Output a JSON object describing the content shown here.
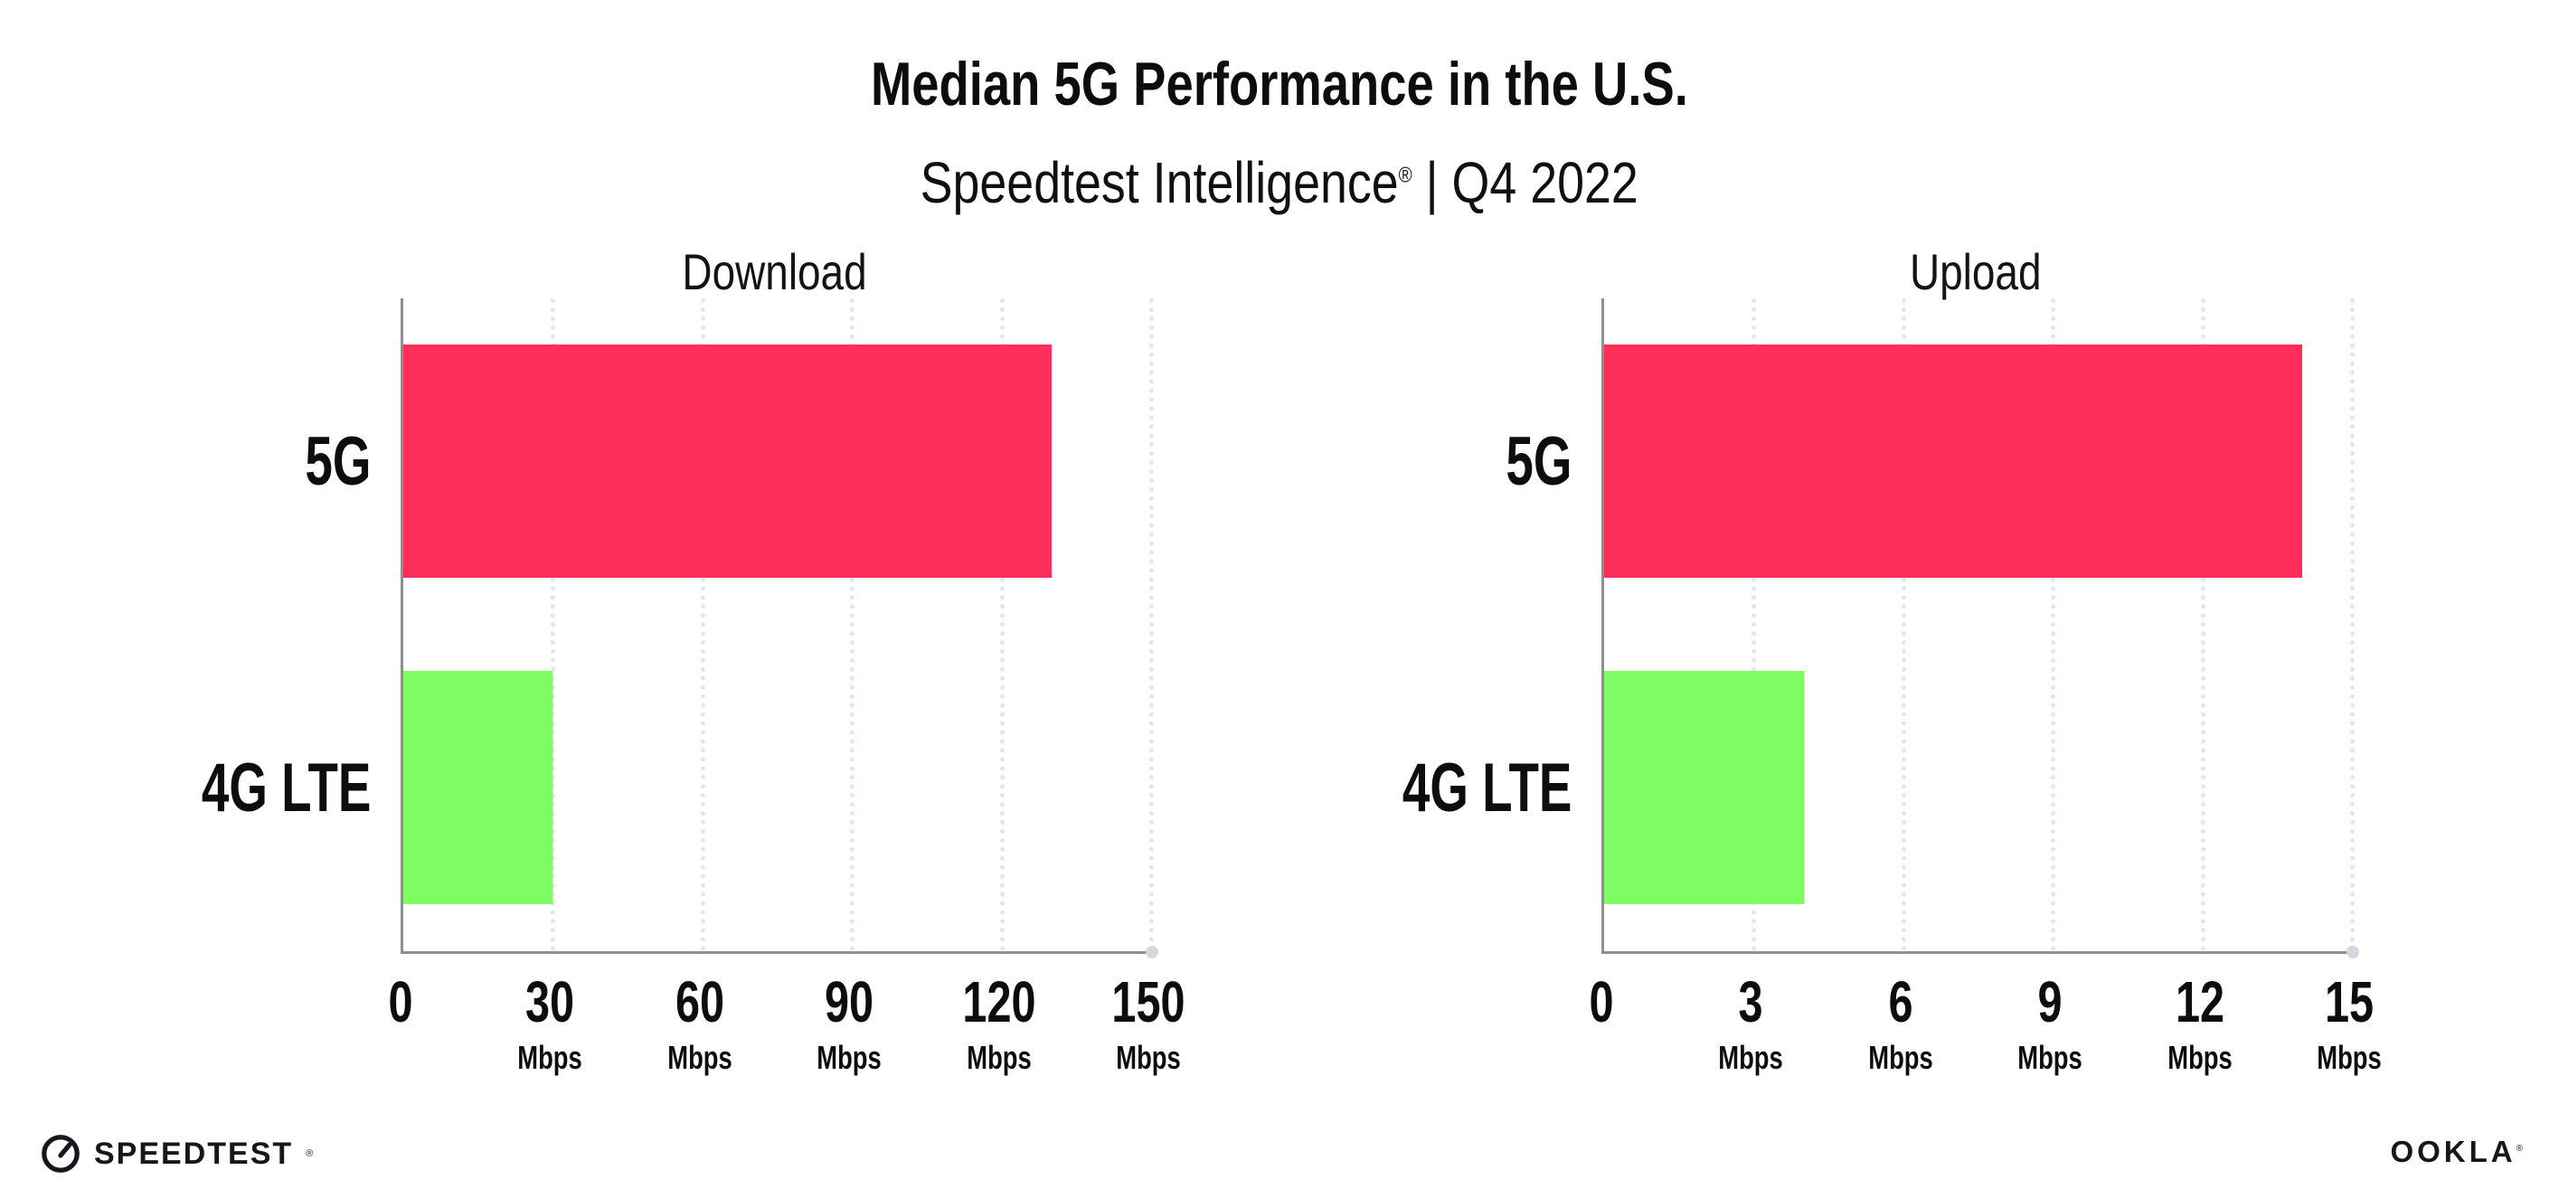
{
  "header": {
    "title": "Median 5G Performance in the U.S.",
    "subtitle_brand": "Speedtest Intelligence",
    "subtitle_reg": "®",
    "subtitle_separator": "|",
    "subtitle_period": "Q4 2022"
  },
  "chart_data": [
    {
      "type": "bar",
      "orientation": "horizontal",
      "title": "Download",
      "categories": [
        "5G",
        "4G LTE"
      ],
      "values": [
        130,
        30
      ],
      "unit": "Mbps",
      "xlim": [
        0,
        150
      ],
      "xticks": [
        0,
        30,
        60,
        90,
        120,
        150
      ],
      "bar_colors": [
        "#ff2d59",
        "#7ffc64"
      ],
      "grid": "dotted-vertical",
      "legend": "none"
    },
    {
      "type": "bar",
      "orientation": "horizontal",
      "title": "Upload",
      "categories": [
        "5G",
        "4G LTE"
      ],
      "values": [
        14,
        4
      ],
      "unit": "Mbps",
      "xlim": [
        0,
        15
      ],
      "xticks": [
        0,
        3,
        6,
        9,
        12,
        15
      ],
      "bar_colors": [
        "#ff2d59",
        "#7ffc64"
      ],
      "grid": "dotted-vertical",
      "legend": "none"
    }
  ],
  "footer": {
    "speedtest_label": "SPEEDTEST",
    "speedtest_reg": "®",
    "ookla_label": "OOKLA",
    "ookla_reg": "®"
  },
  "colors": {
    "bar_5g": "#ff2d59",
    "bar_4g_lte": "#7ffc64",
    "axis": "#8f8f8f",
    "gridline": "#e5e5f0",
    "text": "#0d0d0d",
    "background": "#ffffff"
  }
}
